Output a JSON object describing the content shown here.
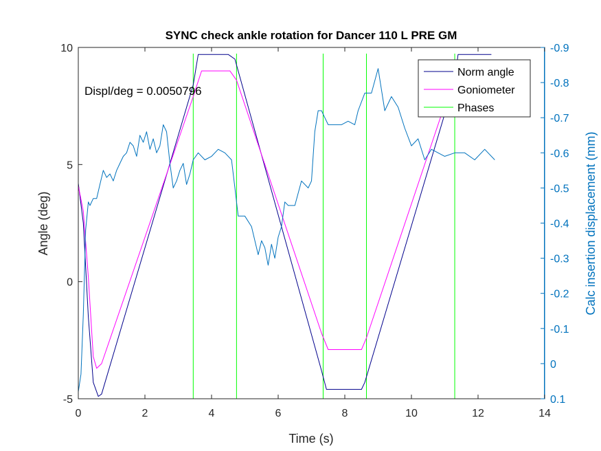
{
  "chart_data": {
    "type": "line",
    "title": "SYNC check ankle rotation for Dancer 110 L PRE GM",
    "xlabel": "Time (s)",
    "ylabel": "Angle (deg)",
    "ylabel_right": "Calc insertion displacement (mm)",
    "annotation": "Displ/deg = 0.0050796",
    "xlim": [
      0,
      14
    ],
    "ylim": [
      -5,
      10
    ],
    "ylim_right": [
      0.1,
      -0.9
    ],
    "right_axis_reversed": true,
    "xticks": [
      "0",
      "2",
      "4",
      "6",
      "8",
      "10",
      "12",
      "14"
    ],
    "yticks": [
      "-5",
      "0",
      "5",
      "10"
    ],
    "yticks_right": [
      "0.1",
      "0",
      "-0.1",
      "-0.2",
      "-0.3",
      "-0.4",
      "-0.5",
      "-0.6",
      "-0.7",
      "-0.8",
      "-0.9"
    ],
    "legend": {
      "position": "top-right",
      "entries": [
        "Norm angle",
        "Goniometer",
        "Phases"
      ]
    },
    "colors": {
      "norm_angle": "#00008B",
      "goniometer": "#FF00FF",
      "phases": "#00FF00",
      "right_axis": "#0072BD"
    },
    "series": [
      {
        "name": "Norm angle",
        "axis": "left",
        "x": [
          0,
          0.15,
          0.3,
          0.45,
          0.6,
          0.7,
          3.45,
          3.6,
          4.5,
          4.7,
          7.3,
          7.45,
          8.5,
          8.6,
          11.3,
          11.4,
          12.4
        ],
        "y": [
          4.2,
          2.5,
          -1.5,
          -4.3,
          -4.9,
          -4.8,
          8.4,
          9.7,
          9.7,
          9.5,
          -3.8,
          -4.6,
          -4.6,
          -4.3,
          8.6,
          9.7,
          9.7
        ]
      },
      {
        "name": "Goniometer",
        "axis": "left",
        "x": [
          0,
          0.15,
          0.3,
          0.45,
          0.55,
          0.7,
          3.45,
          3.7,
          4.55,
          4.75,
          7.3,
          7.5,
          8.5,
          8.65,
          11.2,
          11.3
        ],
        "y": [
          4.1,
          3.0,
          0.2,
          -3.2,
          -3.7,
          -3.5,
          7.9,
          9.0,
          9.0,
          8.6,
          -2.2,
          -2.9,
          -2.9,
          -2.4,
          8.4,
          9.2
        ]
      },
      {
        "name": "Calc insertion displacement",
        "axis": "right",
        "x": [
          0,
          0.08,
          0.15,
          0.22,
          0.3,
          0.35,
          0.45,
          0.55,
          0.65,
          0.75,
          0.85,
          0.95,
          1.05,
          1.15,
          1.25,
          1.35,
          1.45,
          1.55,
          1.65,
          1.75,
          1.85,
          1.95,
          2.05,
          2.15,
          2.25,
          2.35,
          2.45,
          2.55,
          2.65,
          2.75,
          2.85,
          2.95,
          3.05,
          3.15,
          3.25,
          3.35,
          3.45,
          3.6,
          3.8,
          4.0,
          4.2,
          4.4,
          4.6,
          4.7,
          4.8,
          5.0,
          5.2,
          5.4,
          5.5,
          5.6,
          5.7,
          5.8,
          5.9,
          6.0,
          6.1,
          6.2,
          6.3,
          6.5,
          6.7,
          6.9,
          7.0,
          7.1,
          7.2,
          7.3,
          7.4,
          7.5,
          7.7,
          7.9,
          8.1,
          8.3,
          8.4,
          8.6,
          8.8,
          9.0,
          9.2,
          9.4,
          9.6,
          9.8,
          10.0,
          10.2,
          10.4,
          10.6,
          10.8,
          11.0,
          11.3,
          11.6,
          11.9,
          12.2,
          12.5
        ],
        "y": [
          0.08,
          0.03,
          -0.14,
          -0.38,
          -0.46,
          -0.45,
          -0.47,
          -0.47,
          -0.51,
          -0.55,
          -0.53,
          -0.54,
          -0.52,
          -0.55,
          -0.57,
          -0.59,
          -0.6,
          -0.63,
          -0.62,
          -0.59,
          -0.65,
          -0.63,
          -0.66,
          -0.61,
          -0.64,
          -0.6,
          -0.62,
          -0.68,
          -0.66,
          -0.57,
          -0.5,
          -0.52,
          -0.55,
          -0.57,
          -0.51,
          -0.54,
          -0.58,
          -0.6,
          -0.58,
          -0.59,
          -0.61,
          -0.6,
          -0.58,
          -0.5,
          -0.42,
          -0.42,
          -0.39,
          -0.31,
          -0.35,
          -0.33,
          -0.28,
          -0.34,
          -0.3,
          -0.36,
          -0.39,
          -0.46,
          -0.45,
          -0.45,
          -0.52,
          -0.5,
          -0.52,
          -0.66,
          -0.72,
          -0.72,
          -0.7,
          -0.68,
          -0.68,
          -0.68,
          -0.69,
          -0.68,
          -0.72,
          -0.77,
          -0.77,
          -0.84,
          -0.72,
          -0.76,
          -0.73,
          -0.67,
          -0.62,
          -0.64,
          -0.58,
          -0.61,
          -0.6,
          -0.59,
          -0.6,
          -0.6,
          -0.58,
          -0.61,
          -0.58
        ]
      }
    ],
    "phases_x": [
      3.45,
      4.75,
      7.35,
      8.65,
      11.3
    ]
  }
}
